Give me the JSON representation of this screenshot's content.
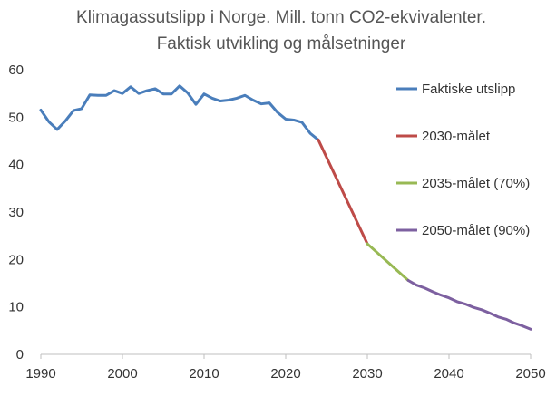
{
  "chart_data": {
    "type": "line",
    "title": "Klimagassutslipp i Norge. Mill. tonn CO2-ekvivalenter.",
    "subtitle": "Faktisk utvikling og målsetninger",
    "xlabel": "",
    "ylabel": "",
    "xlim": [
      1990,
      2050
    ],
    "ylim": [
      0,
      60
    ],
    "x_ticks": [
      1990,
      2000,
      2010,
      2020,
      2030,
      2040,
      2050
    ],
    "y_ticks": [
      0,
      10,
      20,
      30,
      40,
      50,
      60
    ],
    "grid": false,
    "legend_position": "right",
    "series": [
      {
        "name": "Faktiske utslipp",
        "color": "#4a7ebb",
        "points": [
          {
            "x": 1990,
            "y": 51.5
          },
          {
            "x": 1991,
            "y": 49.0
          },
          {
            "x": 1992,
            "y": 47.4
          },
          {
            "x": 1993,
            "y": 49.2
          },
          {
            "x": 1994,
            "y": 51.4
          },
          {
            "x": 1995,
            "y": 51.8
          },
          {
            "x": 1996,
            "y": 54.7
          },
          {
            "x": 1997,
            "y": 54.6
          },
          {
            "x": 1998,
            "y": 54.6
          },
          {
            "x": 1999,
            "y": 55.6
          },
          {
            "x": 2000,
            "y": 55.0
          },
          {
            "x": 2001,
            "y": 56.4
          },
          {
            "x": 2002,
            "y": 55.0
          },
          {
            "x": 2003,
            "y": 55.6
          },
          {
            "x": 2004,
            "y": 56.0
          },
          {
            "x": 2005,
            "y": 54.9
          },
          {
            "x": 2006,
            "y": 54.9
          },
          {
            "x": 2007,
            "y": 56.6
          },
          {
            "x": 2008,
            "y": 55.1
          },
          {
            "x": 2009,
            "y": 52.7
          },
          {
            "x": 2010,
            "y": 54.9
          },
          {
            "x": 2011,
            "y": 54.0
          },
          {
            "x": 2012,
            "y": 53.4
          },
          {
            "x": 2013,
            "y": 53.6
          },
          {
            "x": 2014,
            "y": 54.0
          },
          {
            "x": 2015,
            "y": 54.6
          },
          {
            "x": 2016,
            "y": 53.6
          },
          {
            "x": 2017,
            "y": 52.8
          },
          {
            "x": 2018,
            "y": 53.0
          },
          {
            "x": 2019,
            "y": 51.0
          },
          {
            "x": 2020,
            "y": 49.6
          },
          {
            "x": 2021,
            "y": 49.4
          },
          {
            "x": 2022,
            "y": 48.9
          },
          {
            "x": 2023,
            "y": 46.6
          },
          {
            "x": 2024,
            "y": 45.2
          }
        ]
      },
      {
        "name": "2030-målet",
        "color": "#be4b48",
        "points": [
          {
            "x": 2024,
            "y": 45.2
          },
          {
            "x": 2030,
            "y": 23.3
          }
        ]
      },
      {
        "name": "2035-målet (70%)",
        "color": "#98b954",
        "points": [
          {
            "x": 2030,
            "y": 23.3
          },
          {
            "x": 2035,
            "y": 15.6
          }
        ]
      },
      {
        "name": "2050-målet (90%)",
        "color": "#7d60a0",
        "points": [
          {
            "x": 2035,
            "y": 15.6
          },
          {
            "x": 2036,
            "y": 14.6
          },
          {
            "x": 2037,
            "y": 14.0
          },
          {
            "x": 2038,
            "y": 13.2
          },
          {
            "x": 2039,
            "y": 12.5
          },
          {
            "x": 2040,
            "y": 11.9
          },
          {
            "x": 2041,
            "y": 11.1
          },
          {
            "x": 2042,
            "y": 10.6
          },
          {
            "x": 2043,
            "y": 9.9
          },
          {
            "x": 2044,
            "y": 9.4
          },
          {
            "x": 2045,
            "y": 8.7
          },
          {
            "x": 2046,
            "y": 7.9
          },
          {
            "x": 2047,
            "y": 7.4
          },
          {
            "x": 2048,
            "y": 6.6
          },
          {
            "x": 2049,
            "y": 6.0
          },
          {
            "x": 2050,
            "y": 5.3
          }
        ]
      }
    ]
  }
}
